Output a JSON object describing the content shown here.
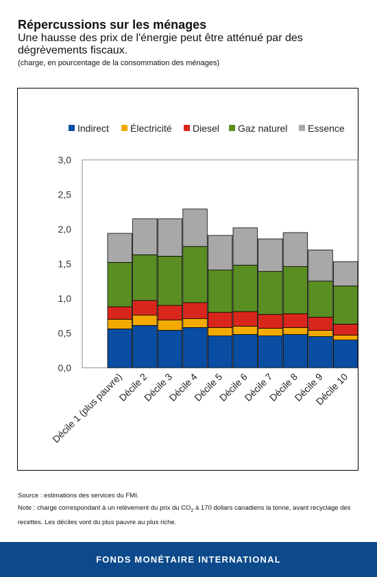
{
  "header": {
    "title": "Répercussions sur les ménages",
    "subtitle": "Une hausse des prix de l'énergie peut être atténué par des dégrèvements fiscaux.",
    "unit_note": "(charge, en pourcentage de la consommation des ménages)"
  },
  "chart_data": {
    "type": "bar",
    "stacked": true,
    "title": "",
    "xlabel": "",
    "ylabel": "",
    "ylim": [
      0,
      3.0
    ],
    "yticks": [
      "0,0",
      "0,5",
      "1,0",
      "1,5",
      "2,0",
      "2,5",
      "3,0"
    ],
    "legend_position": "top",
    "grid": false,
    "categories": [
      "Décile 1 (plus pauvre)",
      "Décile 2",
      "Décile 3",
      "Décile 4",
      "Décile 5",
      "Décile 6",
      "Décile 7",
      "Décile 8",
      "Décile 9",
      "Décile 10"
    ],
    "series": [
      {
        "name": "Indirect",
        "color": "#0a4ea3",
        "values": [
          0.56,
          0.61,
          0.54,
          0.58,
          0.46,
          0.48,
          0.46,
          0.48,
          0.45,
          0.4
        ]
      },
      {
        "name": "Électricité",
        "color": "#f2a900",
        "values": [
          0.14,
          0.15,
          0.15,
          0.13,
          0.12,
          0.12,
          0.11,
          0.1,
          0.09,
          0.07
        ]
      },
      {
        "name": "Diesel",
        "color": "#d9261c",
        "values": [
          0.18,
          0.21,
          0.21,
          0.23,
          0.22,
          0.21,
          0.2,
          0.2,
          0.19,
          0.16
        ]
      },
      {
        "name": "Gaz naturel",
        "color": "#5a8e23",
        "values": [
          0.64,
          0.66,
          0.71,
          0.81,
          0.61,
          0.67,
          0.62,
          0.68,
          0.52,
          0.55
        ]
      },
      {
        "name": "Essence",
        "color": "#a8a8a8",
        "values": [
          0.42,
          0.52,
          0.54,
          0.54,
          0.5,
          0.54,
          0.47,
          0.49,
          0.45,
          0.35
        ]
      }
    ]
  },
  "footer": {
    "source": "Source : estimations des services du FMI.",
    "note_before": "Note : charge correspondant à un relèvement du prix du CO",
    "note_sub": "2",
    "note_after": " à 170 dollars canadiens la tonne, avant recyclage des recettes. Les déciles vont du plus pauvre au plus riche.",
    "brand": "FONDS MONÉTAIRE INTERNATIONAL"
  }
}
